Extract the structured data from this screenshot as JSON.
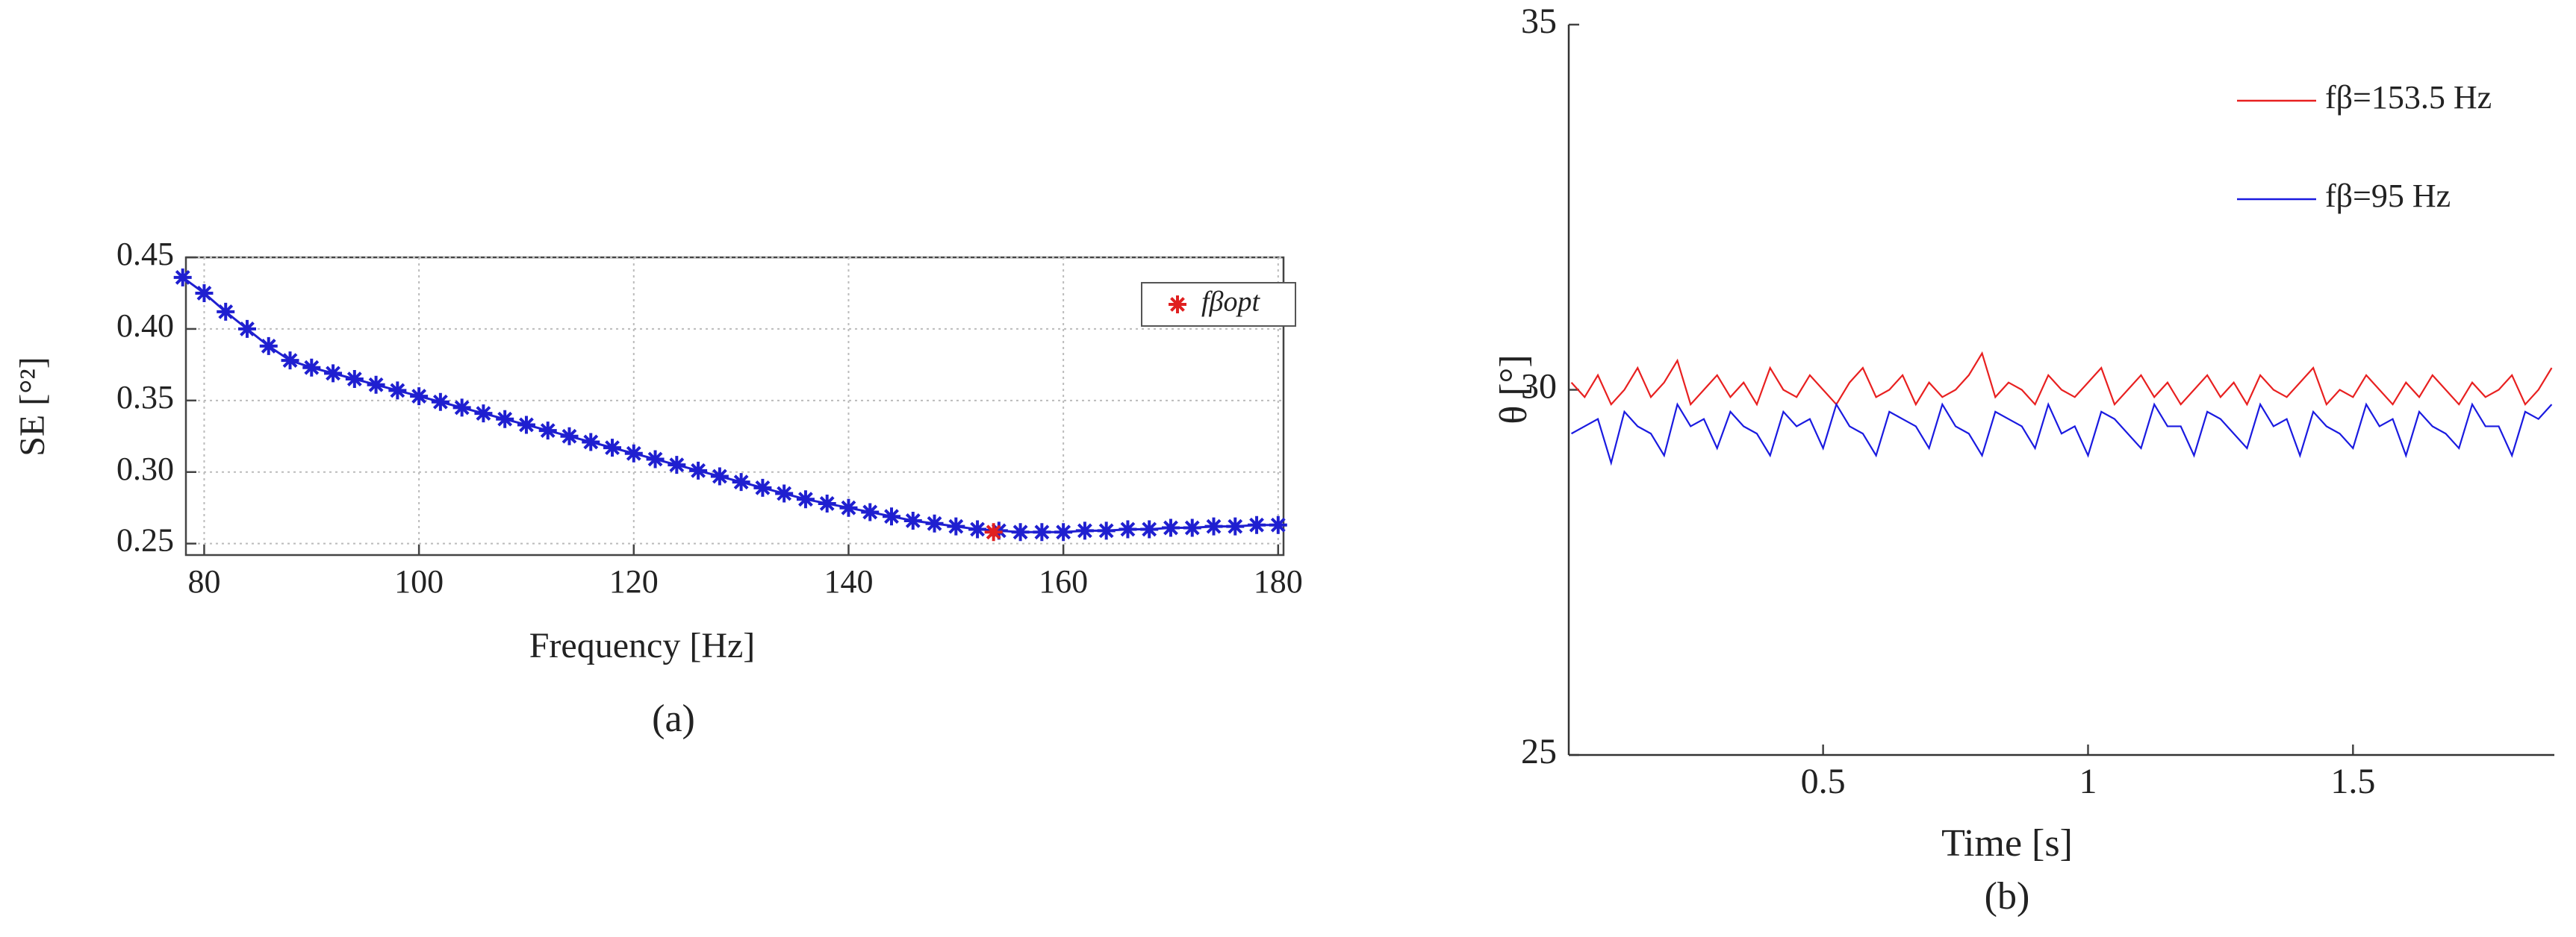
{
  "chart_data": [
    {
      "type": "line",
      "caption": "(a)",
      "xlabel": "Frequency [Hz]",
      "ylabel": "SE [°²]",
      "xlim": [
        78.3,
        180.5
      ],
      "ylim": [
        0.242,
        0.45
      ],
      "xticks": [
        80,
        100,
        120,
        140,
        160,
        180
      ],
      "yticks": [
        0.25,
        {
          "value": 0.3,
          "label": "0.30"
        },
        0.35,
        {
          "value": 0.4,
          "label": "0.40"
        },
        0.45
      ],
      "grid": true,
      "box": true,
      "legend": "upper right",
      "series": [
        {
          "color": "#1f1fd0",
          "marker": "star",
          "line": true,
          "x": [
            78,
            80,
            82,
            84,
            86,
            88,
            90,
            92,
            94,
            96,
            98,
            100,
            102,
            104,
            106,
            108,
            110,
            112,
            114,
            116,
            118,
            120,
            122,
            124,
            126,
            128,
            130,
            132,
            134,
            136,
            138,
            140,
            142,
            144,
            146,
            148,
            150,
            152,
            154,
            156,
            158,
            160,
            162,
            164,
            166,
            168,
            170,
            172,
            174,
            176,
            178,
            180
          ],
          "values": [
            0.436,
            0.425,
            0.412,
            0.4,
            0.388,
            0.378,
            0.373,
            0.369,
            0.365,
            0.361,
            0.357,
            0.353,
            0.349,
            0.345,
            0.341,
            0.337,
            0.333,
            0.329,
            0.325,
            0.321,
            0.317,
            0.313,
            0.309,
            0.305,
            0.301,
            0.297,
            0.293,
            0.289,
            0.285,
            0.281,
            0.278,
            0.275,
            0.272,
            0.269,
            0.266,
            0.264,
            0.262,
            0.26,
            0.259,
            0.258,
            0.258,
            0.258,
            0.259,
            0.259,
            0.26,
            0.26,
            0.261,
            0.261,
            0.262,
            0.262,
            0.263,
            0.263
          ]
        },
        {
          "name": "fβopt",
          "color": "#e02020",
          "marker": "star",
          "line": false,
          "x": [
            153.5
          ],
          "values": [
            0.258
          ]
        }
      ]
    },
    {
      "type": "line",
      "caption": "(b)",
      "xlabel": "Time [s]",
      "ylabel": "θ [°]",
      "xlim": [
        0.02,
        1.88
      ],
      "ylim": [
        25,
        35
      ],
      "xticks": [
        0.5,
        1,
        1.5
      ],
      "yticks": [
        25,
        30,
        35
      ],
      "grid": false,
      "box": false,
      "legend": "upper right",
      "x": [
        0.025,
        0.05,
        0.075,
        0.1,
        0.125,
        0.15,
        0.175,
        0.2,
        0.225,
        0.25,
        0.275,
        0.3,
        0.325,
        0.35,
        0.375,
        0.4,
        0.425,
        0.45,
        0.475,
        0.5,
        0.525,
        0.55,
        0.575,
        0.6,
        0.625,
        0.65,
        0.675,
        0.7,
        0.725,
        0.75,
        0.775,
        0.8,
        0.825,
        0.85,
        0.875,
        0.9,
        0.925,
        0.95,
        0.975,
        1,
        1.025,
        1.05,
        1.075,
        1.1,
        1.125,
        1.15,
        1.175,
        1.2,
        1.225,
        1.25,
        1.275,
        1.3,
        1.325,
        1.35,
        1.375,
        1.4,
        1.425,
        1.45,
        1.475,
        1.5,
        1.525,
        1.55,
        1.575,
        1.6,
        1.625,
        1.65,
        1.675,
        1.7,
        1.725,
        1.75,
        1.775,
        1.8,
        1.825,
        1.85,
        1.875
      ],
      "series": [
        {
          "name": "fβ=153.5 Hz",
          "color": "#e82020",
          "line": true,
          "values": [
            30.1,
            29.9,
            30.2,
            29.8,
            30.0,
            30.3,
            29.9,
            30.1,
            30.4,
            29.8,
            30.0,
            30.2,
            29.9,
            30.1,
            29.8,
            30.3,
            30.0,
            29.9,
            30.2,
            30.0,
            29.8,
            30.1,
            30.3,
            29.9,
            30.0,
            30.2,
            29.8,
            30.1,
            29.9,
            30.0,
            30.2,
            30.5,
            29.9,
            30.1,
            30.0,
            29.8,
            30.2,
            30.0,
            29.9,
            30.1,
            30.3,
            29.8,
            30.0,
            30.2,
            29.9,
            30.1,
            29.8,
            30.0,
            30.2,
            29.9,
            30.1,
            29.8,
            30.2,
            30.0,
            29.9,
            30.1,
            30.3,
            29.8,
            30.0,
            29.9,
            30.2,
            30.0,
            29.8,
            30.1,
            29.9,
            30.2,
            30.0,
            29.8,
            30.1,
            29.9,
            30.0,
            30.2,
            29.8,
            30.0,
            30.3
          ]
        },
        {
          "name": "fβ=95 Hz",
          "color": "#1a1ae0",
          "line": true,
          "values": [
            29.4,
            29.5,
            29.6,
            29.0,
            29.7,
            29.5,
            29.4,
            29.1,
            29.8,
            29.5,
            29.6,
            29.2,
            29.7,
            29.5,
            29.4,
            29.1,
            29.7,
            29.5,
            29.6,
            29.2,
            29.8,
            29.5,
            29.4,
            29.1,
            29.7,
            29.6,
            29.5,
            29.2,
            29.8,
            29.5,
            29.4,
            29.1,
            29.7,
            29.6,
            29.5,
            29.2,
            29.8,
            29.4,
            29.5,
            29.1,
            29.7,
            29.6,
            29.4,
            29.2,
            29.8,
            29.5,
            29.5,
            29.1,
            29.7,
            29.6,
            29.4,
            29.2,
            29.8,
            29.5,
            29.6,
            29.1,
            29.7,
            29.5,
            29.4,
            29.2,
            29.8,
            29.5,
            29.6,
            29.1,
            29.7,
            29.5,
            29.4,
            29.2,
            29.8,
            29.5,
            29.5,
            29.1,
            29.7,
            29.6,
            29.8
          ]
        }
      ]
    }
  ]
}
